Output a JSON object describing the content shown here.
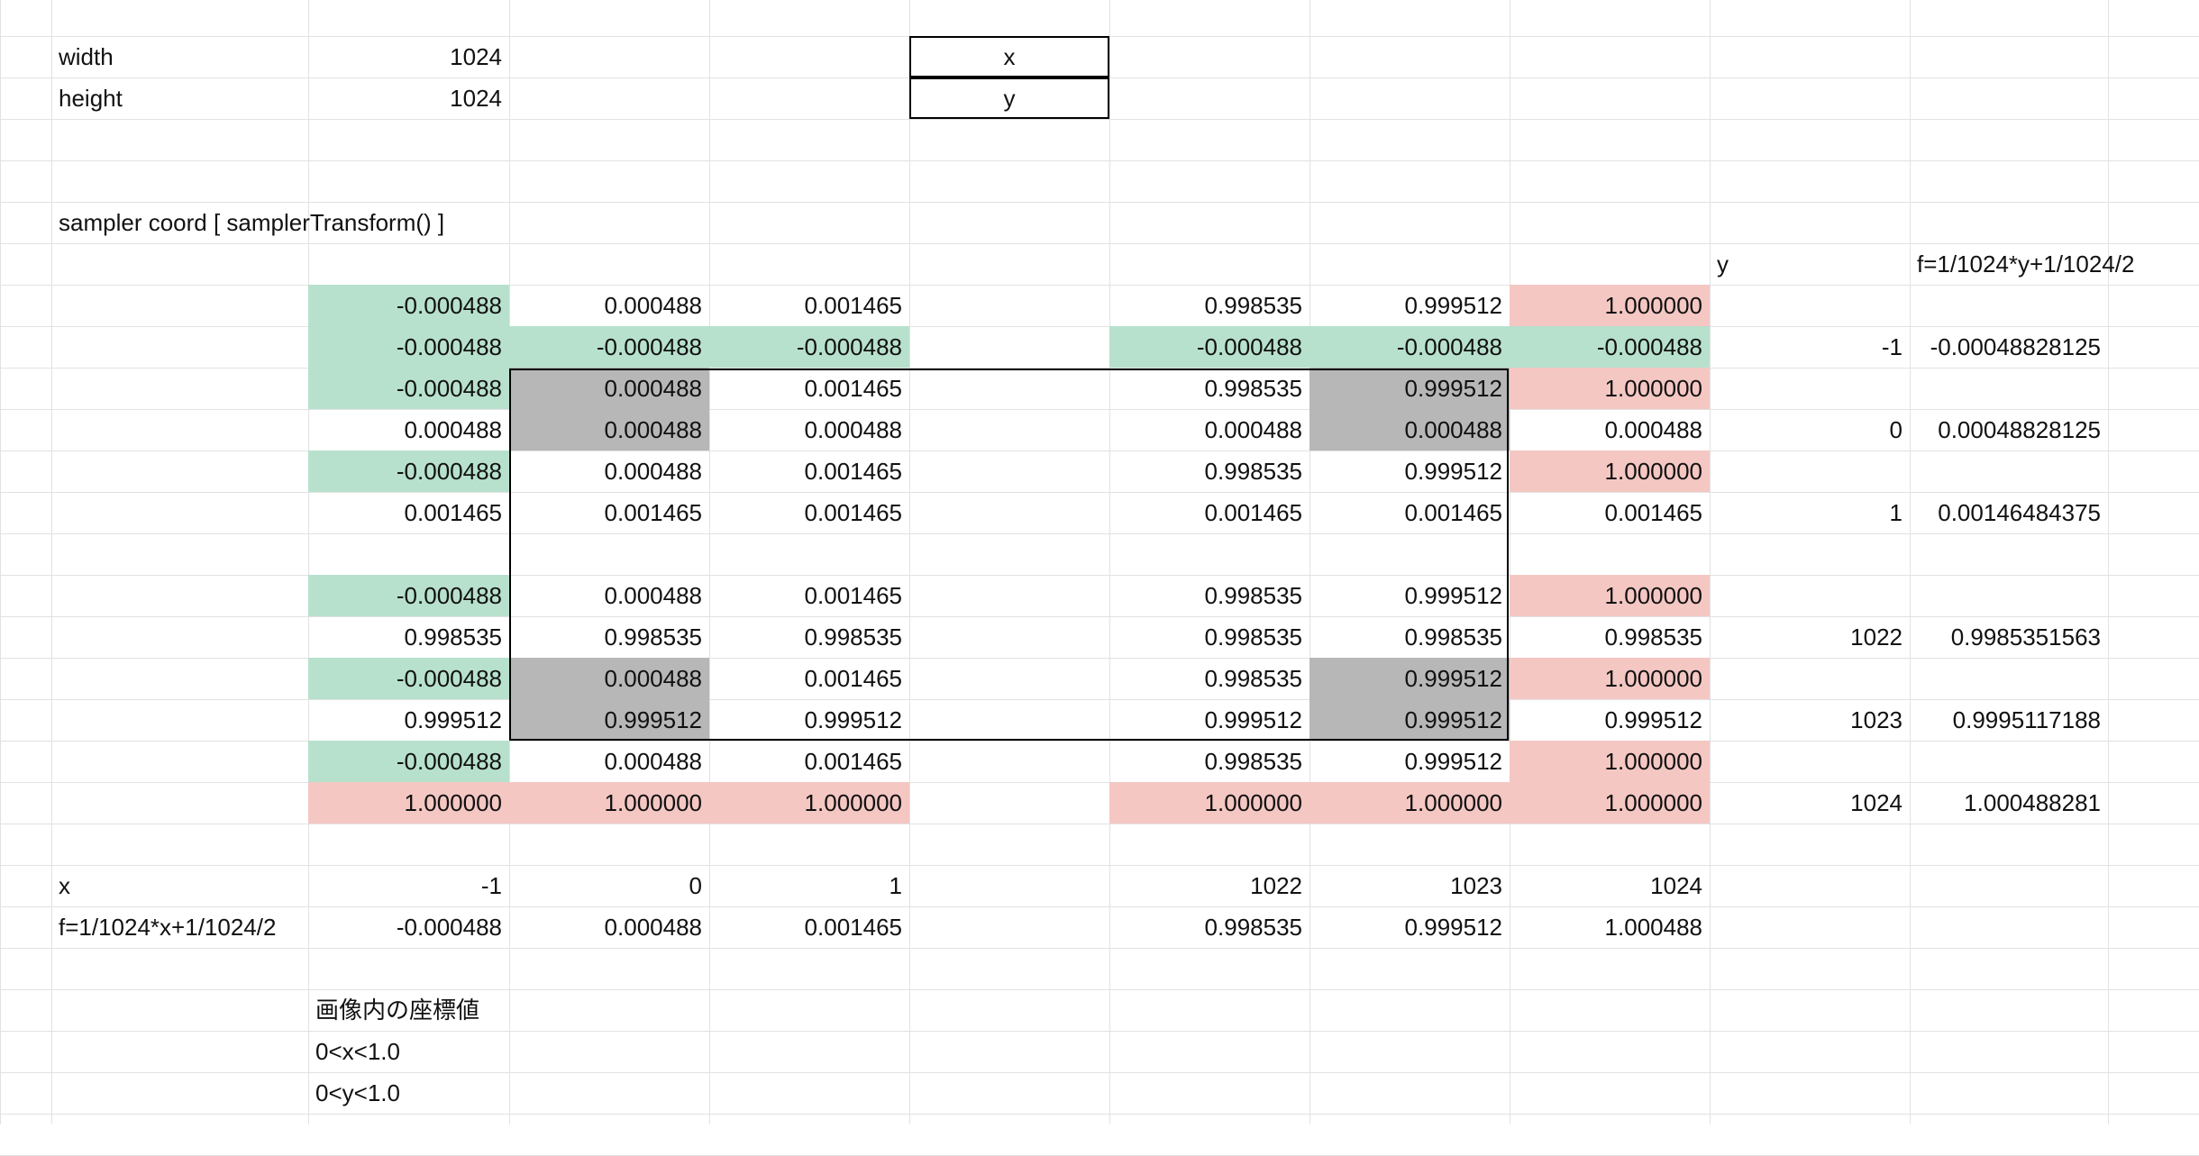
{
  "colors": {
    "green": "#b7e1cd",
    "red": "#f4c7c3",
    "gray": "#b7b7b7",
    "grid": "#e2e2e2"
  },
  "sheet": {
    "rows": [
      [
        {
          "c": 0,
          "v": "width",
          "t": "txt"
        },
        {
          "c": 1,
          "v": "1024"
        },
        {
          "c": 4,
          "v": "x",
          "t": "ctr",
          "f": "box"
        }
      ],
      [
        {
          "c": 0,
          "v": "height",
          "t": "txt"
        },
        {
          "c": 1,
          "v": "1024"
        },
        {
          "c": 4,
          "v": "y",
          "t": "ctr",
          "f": "box"
        }
      ],
      [],
      [],
      [
        {
          "c": 0,
          "v": "sampler coord [ samplerTransform() ]",
          "t": "txt"
        }
      ],
      [
        {
          "c": 8,
          "v": "y",
          "t": "txt"
        },
        {
          "c": 9,
          "v": "f=1/1024*y+1/1024/2",
          "t": "txt"
        }
      ],
      [
        {
          "c": 1,
          "v": "-0.000488",
          "f": "green"
        },
        {
          "c": 2,
          "v": "0.000488"
        },
        {
          "c": 3,
          "v": "0.001465"
        },
        {
          "c": 5,
          "v": "0.998535"
        },
        {
          "c": 6,
          "v": "0.999512"
        },
        {
          "c": 7,
          "v": "1.000000",
          "f": "red"
        }
      ],
      [
        {
          "c": 1,
          "v": "-0.000488",
          "f": "green"
        },
        {
          "c": 2,
          "v": "-0.000488",
          "f": "green"
        },
        {
          "c": 3,
          "v": "-0.000488",
          "f": "green"
        },
        {
          "c": 5,
          "v": "-0.000488",
          "f": "green"
        },
        {
          "c": 6,
          "v": "-0.000488",
          "f": "green"
        },
        {
          "c": 7,
          "v": "-0.000488",
          "f": "green"
        },
        {
          "c": 8,
          "v": "-1"
        },
        {
          "c": 9,
          "v": "-0.00048828125"
        }
      ],
      [
        {
          "c": 1,
          "v": "-0.000488",
          "f": "green"
        },
        {
          "c": 2,
          "v": "0.000488",
          "f": "gray"
        },
        {
          "c": 3,
          "v": "0.001465"
        },
        {
          "c": 5,
          "v": "0.998535"
        },
        {
          "c": 6,
          "v": "0.999512",
          "f": "gray"
        },
        {
          "c": 7,
          "v": "1.000000",
          "f": "red"
        }
      ],
      [
        {
          "c": 1,
          "v": "0.000488"
        },
        {
          "c": 2,
          "v": "0.000488",
          "f": "gray"
        },
        {
          "c": 3,
          "v": "0.000488"
        },
        {
          "c": 5,
          "v": "0.000488"
        },
        {
          "c": 6,
          "v": "0.000488",
          "f": "gray"
        },
        {
          "c": 7,
          "v": "0.000488"
        },
        {
          "c": 8,
          "v": "0"
        },
        {
          "c": 9,
          "v": "0.00048828125"
        }
      ],
      [
        {
          "c": 1,
          "v": "-0.000488",
          "f": "green"
        },
        {
          "c": 2,
          "v": "0.000488"
        },
        {
          "c": 3,
          "v": "0.001465"
        },
        {
          "c": 5,
          "v": "0.998535"
        },
        {
          "c": 6,
          "v": "0.999512"
        },
        {
          "c": 7,
          "v": "1.000000",
          "f": "red"
        }
      ],
      [
        {
          "c": 1,
          "v": "0.001465"
        },
        {
          "c": 2,
          "v": "0.001465"
        },
        {
          "c": 3,
          "v": "0.001465"
        },
        {
          "c": 5,
          "v": "0.001465"
        },
        {
          "c": 6,
          "v": "0.001465"
        },
        {
          "c": 7,
          "v": "0.001465"
        },
        {
          "c": 8,
          "v": "1"
        },
        {
          "c": 9,
          "v": "0.00146484375"
        }
      ],
      [],
      [
        {
          "c": 1,
          "v": "-0.000488",
          "f": "green"
        },
        {
          "c": 2,
          "v": "0.000488"
        },
        {
          "c": 3,
          "v": "0.001465"
        },
        {
          "c": 5,
          "v": "0.998535"
        },
        {
          "c": 6,
          "v": "0.999512"
        },
        {
          "c": 7,
          "v": "1.000000",
          "f": "red"
        }
      ],
      [
        {
          "c": 1,
          "v": "0.998535"
        },
        {
          "c": 2,
          "v": "0.998535"
        },
        {
          "c": 3,
          "v": "0.998535"
        },
        {
          "c": 5,
          "v": "0.998535"
        },
        {
          "c": 6,
          "v": "0.998535"
        },
        {
          "c": 7,
          "v": "0.998535"
        },
        {
          "c": 8,
          "v": "1022"
        },
        {
          "c": 9,
          "v": "0.9985351563"
        }
      ],
      [
        {
          "c": 1,
          "v": "-0.000488",
          "f": "green"
        },
        {
          "c": 2,
          "v": "0.000488",
          "f": "gray"
        },
        {
          "c": 3,
          "v": "0.001465"
        },
        {
          "c": 5,
          "v": "0.998535"
        },
        {
          "c": 6,
          "v": "0.999512",
          "f": "gray"
        },
        {
          "c": 7,
          "v": "1.000000",
          "f": "red"
        }
      ],
      [
        {
          "c": 1,
          "v": "0.999512"
        },
        {
          "c": 2,
          "v": "0.999512",
          "f": "gray"
        },
        {
          "c": 3,
          "v": "0.999512"
        },
        {
          "c": 5,
          "v": "0.999512"
        },
        {
          "c": 6,
          "v": "0.999512",
          "f": "gray"
        },
        {
          "c": 7,
          "v": "0.999512"
        },
        {
          "c": 8,
          "v": "1023"
        },
        {
          "c": 9,
          "v": "0.9995117188"
        }
      ],
      [
        {
          "c": 1,
          "v": "-0.000488",
          "f": "green"
        },
        {
          "c": 2,
          "v": "0.000488"
        },
        {
          "c": 3,
          "v": "0.001465"
        },
        {
          "c": 5,
          "v": "0.998535"
        },
        {
          "c": 6,
          "v": "0.999512"
        },
        {
          "c": 7,
          "v": "1.000000",
          "f": "red"
        }
      ],
      [
        {
          "c": 1,
          "v": "1.000000",
          "f": "red"
        },
        {
          "c": 2,
          "v": "1.000000",
          "f": "red"
        },
        {
          "c": 3,
          "v": "1.000000",
          "f": "red"
        },
        {
          "c": 5,
          "v": "1.000000",
          "f": "red"
        },
        {
          "c": 6,
          "v": "1.000000",
          "f": "red"
        },
        {
          "c": 7,
          "v": "1.000000",
          "f": "red"
        },
        {
          "c": 8,
          "v": "1024"
        },
        {
          "c": 9,
          "v": "1.000488281"
        }
      ],
      [],
      [
        {
          "c": 0,
          "v": "x",
          "t": "txt"
        },
        {
          "c": 1,
          "v": "-1"
        },
        {
          "c": 2,
          "v": "0"
        },
        {
          "c": 3,
          "v": "1"
        },
        {
          "c": 5,
          "v": "1022"
        },
        {
          "c": 6,
          "v": "1023"
        },
        {
          "c": 7,
          "v": "1024"
        }
      ],
      [
        {
          "c": 0,
          "v": "f=1/1024*x+1/1024/2",
          "t": "txt"
        },
        {
          "c": 1,
          "v": "-0.000488"
        },
        {
          "c": 2,
          "v": "0.000488"
        },
        {
          "c": 3,
          "v": "0.001465"
        },
        {
          "c": 5,
          "v": "0.998535"
        },
        {
          "c": 6,
          "v": "0.999512"
        },
        {
          "c": 7,
          "v": "1.000488"
        }
      ],
      [],
      [
        {
          "c": 1,
          "v": "画像内の座標値",
          "t": "txt"
        }
      ],
      [
        {
          "c": 1,
          "v": "0<x<1.0",
          "t": "txt"
        }
      ],
      [
        {
          "c": 1,
          "v": "0<y<1.0",
          "t": "txt"
        }
      ]
    ]
  }
}
